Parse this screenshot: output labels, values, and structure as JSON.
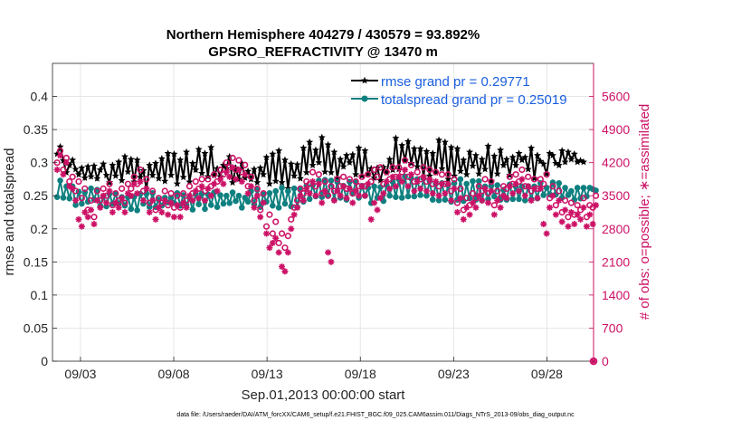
{
  "chart_data": {
    "type": "line",
    "title": "Northern Hemisphere 404279 / 430579 = 93.892%",
    "subtitle": "GPSRO_REFRACTIVITY @ 13470 m",
    "xlabel": "Sep.01,2013 00:00:00 start",
    "ylabel": "rmse and totalspread",
    "y2label": "# of obs: o=possible; ∗=assimilated",
    "footnote": "data file: /Users/raeder/DAI/ATM_forcXX/CAM6_setup/f.e21.FHIST_BGC.f09_025.CAM6assim.011/Diags_NTrS_2013-09/obs_diag_output.nc",
    "xlim": [
      1.5,
      30.5
    ],
    "ylim": [
      0,
      0.45
    ],
    "y2lim": [
      0,
      6300
    ],
    "x_ticks": [
      3,
      8,
      13,
      18,
      23,
      28
    ],
    "x_tick_labels": [
      "09/03",
      "09/08",
      "09/13",
      "09/18",
      "09/23",
      "09/28"
    ],
    "y_ticks": [
      0,
      0.05,
      0.1,
      0.15,
      0.2,
      0.25,
      0.3,
      0.35,
      0.4
    ],
    "y_tick_labels": [
      "0",
      "0.05",
      "0.1",
      "0.15",
      "0.2",
      "0.25",
      "0.3",
      "0.35",
      "0.4"
    ],
    "y2_ticks": [
      0,
      700,
      1400,
      2100,
      2800,
      3500,
      4200,
      4900,
      5600
    ],
    "y2_tick_labels": [
      "0",
      "700",
      "1400",
      "2100",
      "2800",
      "3500",
      "4200",
      "4900",
      "5600"
    ],
    "grid": true,
    "legend_position": "top-right",
    "series": [
      {
        "name": "rmse grand pr = 0.29771",
        "color": "#000000",
        "axis": "left",
        "marker": "filled-star",
        "values": [
          0.313,
          0.324,
          0.303,
          0.285,
          0.296,
          0.304,
          0.29,
          0.282,
          0.292,
          0.277,
          0.294,
          0.279,
          0.295,
          0.276,
          0.289,
          0.298,
          0.281,
          0.27,
          0.296,
          0.28,
          0.301,
          0.273,
          0.309,
          0.286,
          0.305,
          0.271,
          0.304,
          0.278,
          0.288,
          0.26,
          0.296,
          0.281,
          0.299,
          0.276,
          0.306,
          0.272,
          0.314,
          0.281,
          0.313,
          0.268,
          0.304,
          0.278,
          0.316,
          0.271,
          0.299,
          0.289,
          0.32,
          0.284,
          0.314,
          0.279,
          0.323,
          0.281,
          0.291,
          0.279,
          0.296,
          0.291,
          0.309,
          0.27,
          0.292,
          0.275,
          0.299,
          0.277,
          0.287,
          0.275,
          0.29,
          0.27,
          0.292,
          0.282,
          0.308,
          0.268,
          0.313,
          0.272,
          0.318,
          0.27,
          0.304,
          0.261,
          0.298,
          0.28,
          0.297,
          0.276,
          0.322,
          0.285,
          0.331,
          0.296,
          0.319,
          0.3,
          0.338,
          0.286,
          0.327,
          0.285,
          0.316,
          0.277,
          0.305,
          0.294,
          0.311,
          0.3,
          0.312,
          0.282,
          0.322,
          0.28,
          0.318,
          0.283,
          0.291,
          0.277,
          0.292,
          0.273,
          0.293,
          0.285,
          0.305,
          0.289,
          0.337,
          0.29,
          0.326,
          0.303,
          0.332,
          0.299,
          0.321,
          0.294,
          0.321,
          0.278,
          0.317,
          0.28,
          0.314,
          0.285,
          0.334,
          0.291,
          0.331,
          0.275,
          0.323,
          0.28,
          0.321,
          0.287,
          0.304,
          0.282,
          0.316,
          0.295,
          0.311,
          0.283,
          0.305,
          0.29,
          0.325,
          0.272,
          0.31,
          0.283,
          0.319,
          0.296,
          0.305,
          0.281,
          0.308,
          0.296,
          0.314,
          0.304,
          0.308,
          0.29,
          0.322,
          0.276,
          0.311,
          0.302,
          0.298,
          0.283,
          0.314,
          0.311,
          0.299,
          0.296,
          0.318,
          0.301,
          0.316,
          0.305,
          0.313,
          0.301,
          0.303,
          0.301
        ]
      },
      {
        "name": "totalspread grand pr = 0.25019",
        "color": "#0f8080",
        "axis": "left",
        "marker": "filled-circle",
        "values": [
          0.248,
          0.273,
          0.247,
          0.264,
          0.246,
          0.264,
          0.236,
          0.256,
          0.238,
          0.255,
          0.241,
          0.261,
          0.244,
          0.259,
          0.235,
          0.249,
          0.234,
          0.253,
          0.238,
          0.253,
          0.238,
          0.248,
          0.235,
          0.248,
          0.23,
          0.248,
          0.228,
          0.253,
          0.238,
          0.253,
          0.233,
          0.254,
          0.233,
          0.244,
          0.235,
          0.247,
          0.24,
          0.247,
          0.239,
          0.254,
          0.235,
          0.251,
          0.236,
          0.247,
          0.229,
          0.253,
          0.237,
          0.253,
          0.23,
          0.252,
          0.236,
          0.255,
          0.233,
          0.251,
          0.238,
          0.25,
          0.239,
          0.255,
          0.242,
          0.25,
          0.232,
          0.247,
          0.241,
          0.257,
          0.237,
          0.259,
          0.233,
          0.252,
          0.241,
          0.254,
          0.235,
          0.257,
          0.232,
          0.262,
          0.238,
          0.257,
          0.234,
          0.261,
          0.233,
          0.259,
          0.241,
          0.265,
          0.245,
          0.266,
          0.249,
          0.273,
          0.248,
          0.274,
          0.251,
          0.273,
          0.244,
          0.271,
          0.247,
          0.265,
          0.244,
          0.271,
          0.253,
          0.271,
          0.247,
          0.265,
          0.25,
          0.262,
          0.239,
          0.264,
          0.247,
          0.263,
          0.242,
          0.266,
          0.25,
          0.271,
          0.248,
          0.275,
          0.247,
          0.279,
          0.249,
          0.276,
          0.249,
          0.275,
          0.251,
          0.276,
          0.25,
          0.272,
          0.244,
          0.268,
          0.243,
          0.269,
          0.244,
          0.266,
          0.241,
          0.269,
          0.244,
          0.275,
          0.242,
          0.268,
          0.246,
          0.272,
          0.244,
          0.272,
          0.243,
          0.264,
          0.245,
          0.265,
          0.249,
          0.266,
          0.244,
          0.259,
          0.244,
          0.267,
          0.245,
          0.264,
          0.245,
          0.264,
          0.243,
          0.264,
          0.245,
          0.264,
          0.246,
          0.269,
          0.251,
          0.262,
          0.252,
          0.27,
          0.252,
          0.269,
          0.247,
          0.262,
          0.251,
          0.257,
          0.244,
          0.262,
          0.246,
          0.262,
          0.249,
          0.262,
          0.26,
          0.258
        ]
      },
      {
        "name": "obs possible",
        "color": "#cc1166",
        "axis": "right",
        "marker": "open-circle",
        "values": [
          4200,
          4450,
          4050,
          4300,
          3800,
          3900,
          3600,
          3800,
          3450,
          3650,
          3200,
          3400,
          3050,
          3600,
          3400,
          3650,
          3500,
          3750,
          3300,
          3550,
          3400,
          3650,
          3350,
          3750,
          3650,
          3900,
          3750,
          4050,
          3600,
          3850,
          3350,
          3600,
          3200,
          3450,
          3350,
          3600,
          3300,
          3550,
          3250,
          3500,
          3250,
          3550,
          3400,
          3700,
          3550,
          3800,
          3650,
          3850,
          3600,
          3850,
          3700,
          3950,
          3800,
          4050,
          3950,
          4200,
          4100,
          4300,
          4050,
          4250,
          4000,
          4150,
          3700,
          3900,
          3400,
          3650,
          3200,
          3550,
          2850,
          3100,
          2700,
          2950,
          2500,
          2700,
          2400,
          2650,
          3000,
          3250,
          3400,
          3650,
          3550,
          3800,
          3750,
          4000,
          3700,
          3950,
          3550,
          3800,
          3500,
          3700,
          3600,
          3850,
          3700,
          3900,
          3650,
          3850,
          3550,
          3800,
          3700,
          3900,
          3700,
          3950,
          3800,
          4050,
          3900,
          4100,
          3750,
          4000,
          3850,
          4100,
          3900,
          4100,
          4000,
          4250,
          3900,
          4150,
          3800,
          4000,
          3850,
          4100,
          3800,
          4050,
          3750,
          4000,
          3700,
          3950,
          3750,
          3950,
          3600,
          3850,
          3350,
          3650,
          3200,
          3450,
          3300,
          3550,
          3450,
          3700,
          3600,
          3850,
          3550,
          3800,
          3300,
          3600,
          3450,
          3700,
          3650,
          3900,
          3750,
          3950,
          3800,
          4050,
          3700,
          3900,
          3600,
          3850,
          3650,
          3850,
          3750,
          3950,
          3450,
          3700,
          3300,
          3600,
          3150,
          3400,
          3050,
          3350,
          3100,
          3300,
          3200,
          3450,
          3050,
          3300,
          3250,
          3500
        ]
      },
      {
        "name": "obs assimilated",
        "color": "#cc1166",
        "axis": "right",
        "marker": "asterisk",
        "values": [
          4050,
          4350,
          3950,
          4200,
          3700,
          3650,
          3400,
          3000,
          2850,
          3150,
          3050,
          3200,
          2900,
          3400,
          3250,
          3500,
          3350,
          3600,
          3150,
          3350,
          3250,
          3450,
          3150,
          3550,
          3500,
          3750,
          3550,
          3800,
          3400,
          3650,
          3150,
          3400,
          3000,
          3250,
          3150,
          3400,
          3100,
          3350,
          3050,
          3300,
          3050,
          3350,
          3250,
          3500,
          3400,
          3600,
          3450,
          3700,
          3400,
          3650,
          3500,
          3750,
          3600,
          3850,
          3750,
          4000,
          3900,
          4100,
          3850,
          4050,
          3800,
          3950,
          3550,
          3700,
          3250,
          3500,
          3050,
          3350,
          2700,
          2400,
          2500,
          2600,
          2300,
          2000,
          1900,
          2300,
          2800,
          3100,
          3250,
          3500,
          3400,
          3650,
          3550,
          3800,
          3500,
          3750,
          3350,
          3600,
          2300,
          2100,
          3400,
          3600,
          3500,
          3700,
          3450,
          3650,
          3350,
          3600,
          3500,
          3700,
          3500,
          3750,
          3000,
          3350,
          3200,
          3450,
          3550,
          3800,
          3650,
          3900,
          3700,
          3900,
          3800,
          4050,
          3700,
          3950,
          3600,
          3800,
          3650,
          3900,
          3600,
          3850,
          3550,
          3800,
          3500,
          3750,
          3550,
          3750,
          3400,
          3650,
          3150,
          3450,
          3000,
          3250,
          3100,
          3350,
          3250,
          3500,
          3400,
          3650,
          3350,
          3600,
          3100,
          3400,
          3250,
          3500,
          3450,
          3700,
          3550,
          3750,
          3600,
          3850,
          3500,
          3700,
          3400,
          3650,
          3450,
          3650,
          2900,
          2700,
          3250,
          3500,
          3100,
          3400,
          2950,
          3200,
          2850,
          3150,
          2900,
          3100,
          3000,
          3250,
          2850,
          3100,
          2900,
          3300
        ]
      }
    ]
  }
}
